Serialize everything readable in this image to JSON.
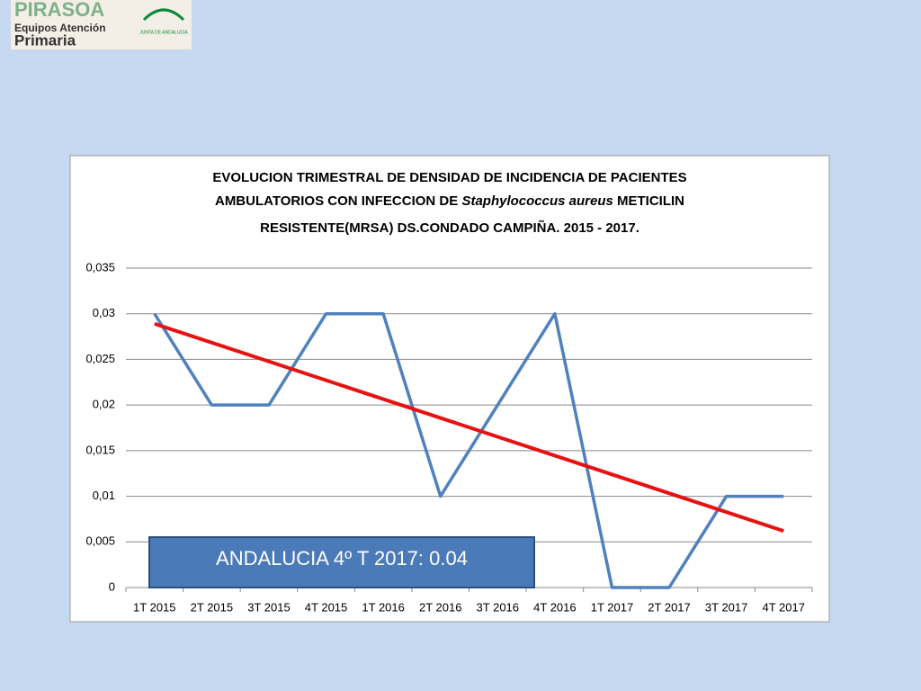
{
  "logo": {
    "brand": "PIRASOA",
    "line1": "Equipos Atención",
    "line2": "Primaria",
    "org": "JUNTA DE ANDALUCIA"
  },
  "chart_data": {
    "type": "line",
    "title": [
      "EVOLUCION TRIMESTRAL DE DENSIDAD DE INCIDENCIA DE PACIENTES",
      "AMBULATORIOS CON INFECCION DE",
      "Staphylococcus aureus",
      "METICILIN",
      "RESISTENTE(MRSA) DS.CONDADO CAMPIÑA. 2015 - 2017."
    ],
    "categories": [
      "1T 2015",
      "2T 2015",
      "3T 2015",
      "4T 2015",
      "1T 2016",
      "2T 2016",
      "3T 2016",
      "4T 2016",
      "1T 2017",
      "2T 2017",
      "3T 2017",
      "4T 2017"
    ],
    "values": [
      0.03,
      0.02,
      0.02,
      0.03,
      0.03,
      0.01,
      0.02,
      0.03,
      0,
      0,
      0.01,
      0.01
    ],
    "color": "#4f81bd",
    "trendline": {
      "color": "#e81010",
      "values": [
        0.0289,
        0.0062
      ]
    },
    "ylim": [
      0,
      0.035
    ],
    "yticks": [
      0,
      {
        "value": 0.005,
        "label": "0,005"
      },
      {
        "value": 0.01,
        "label": "0,01"
      },
      {
        "value": 0.015,
        "label": "0,015"
      },
      {
        "value": 0.02,
        "label": "0,02"
      },
      {
        "value": 0.025,
        "label": "0,025"
      },
      {
        "value": 0.03,
        "label": "0,03"
      },
      {
        "value": 0.035,
        "label": "0,035"
      }
    ],
    "grid": true,
    "annotation": "ANDALUCIA 4º T 2017: 0.04"
  }
}
